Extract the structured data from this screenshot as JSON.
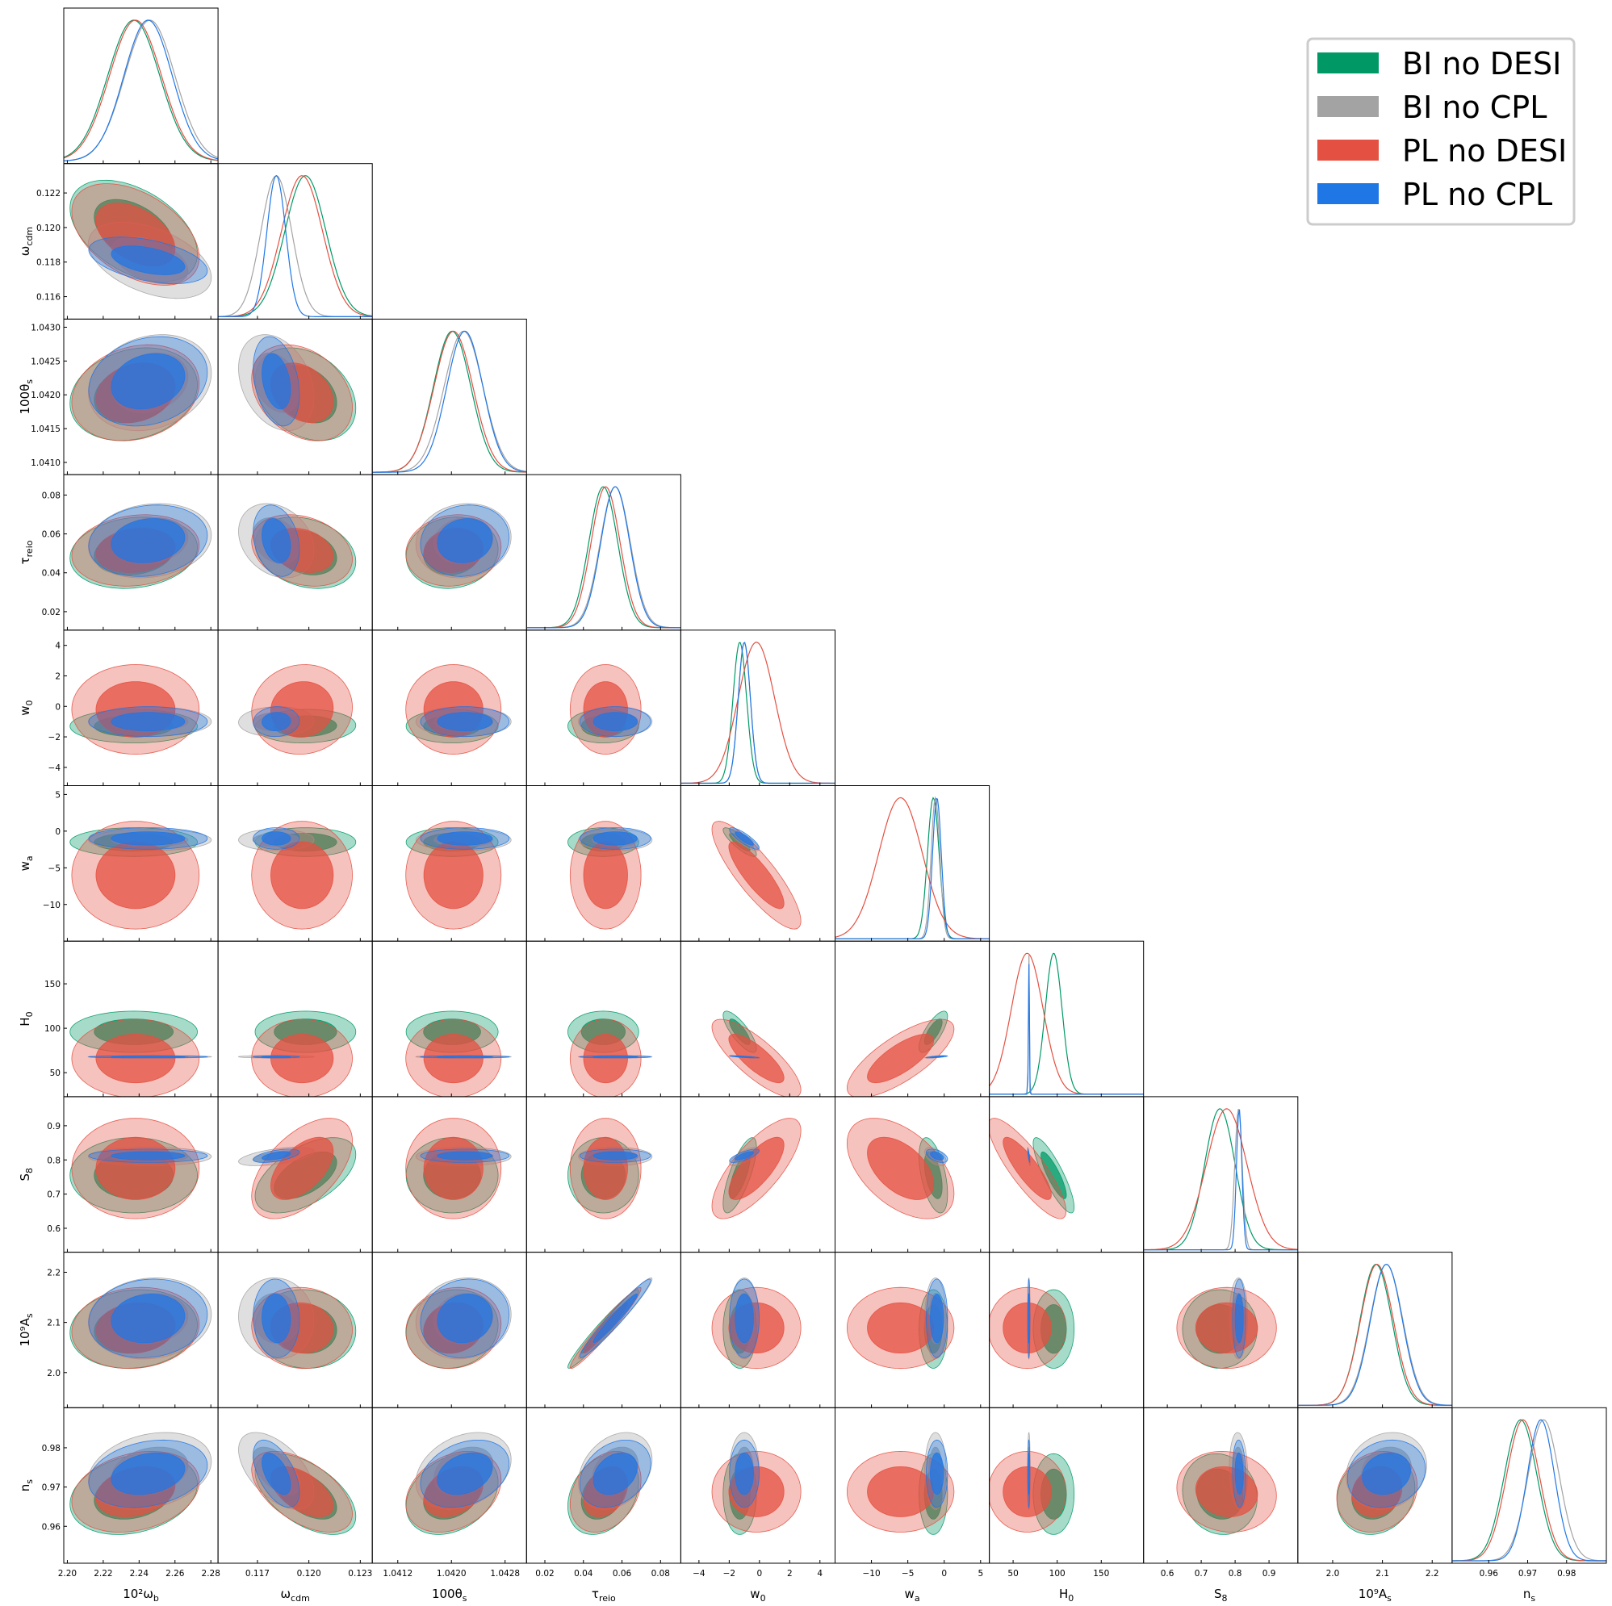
{
  "chart_data": {
    "type": "corner",
    "title": "",
    "parameters": [
      {
        "id": "omega_b",
        "label": "10²ω_b",
        "sub": "b",
        "ticks": [
          "2.20",
          "2.22",
          "2.24",
          "2.26",
          "2.28"
        ],
        "range": [
          2.198,
          2.284
        ]
      },
      {
        "id": "omega_cdm",
        "label": "ω_cdm",
        "sub": "cdm",
        "ticks": [
          "0.117",
          "0.120",
          "0.123"
        ],
        "range": [
          0.1147,
          0.1237
        ]
      },
      {
        "id": "theta_s",
        "label": "100θ_s",
        "sub": "s",
        "ticks": [
          "1.0412",
          "1.0420",
          "1.0428"
        ],
        "range": [
          1.04082,
          1.04312
        ]
      },
      {
        "id": "tau_reio",
        "label": "τ_reio",
        "sub": "reio",
        "ticks": [
          "0.02",
          "0.04",
          "0.06",
          "0.08"
        ],
        "range": [
          0.0105,
          0.0905
        ]
      },
      {
        "id": "w0",
        "label": "w_0",
        "sub": "0",
        "ticks": [
          "−4",
          "−2",
          "0",
          "2",
          "4"
        ],
        "range": [
          -5.2,
          5.0
        ]
      },
      {
        "id": "wa",
        "label": "w_a",
        "sub": "a",
        "ticks": [
          "−10",
          "−5",
          "0",
          "5"
        ],
        "range": [
          -15.0,
          6.2
        ]
      },
      {
        "id": "H0",
        "label": "H_0",
        "sub": "0",
        "ticks": [
          "50",
          "100",
          "150"
        ],
        "range": [
          23,
          198
        ]
      },
      {
        "id": "S8",
        "label": "S_8",
        "sub": "8",
        "ticks": [
          "0.6",
          "0.7",
          "0.8",
          "0.9"
        ],
        "range": [
          0.53,
          0.985
        ]
      },
      {
        "id": "As",
        "label": "10⁹A_s",
        "sub": "s",
        "ticks": [
          "2.0",
          "2.1",
          "2.2"
        ],
        "range": [
          1.93,
          2.24
        ]
      },
      {
        "id": "ns",
        "label": "n_s",
        "sub": "s",
        "ticks": [
          "0.96",
          "0.97",
          "0.98"
        ],
        "range": [
          0.9506,
          0.9902
        ]
      }
    ],
    "y_ticks": [
      null,
      [
        "0.122",
        "0.120",
        "0.118",
        "0.116"
      ],
      [
        "1.0430",
        "1.0425",
        "1.0420",
        "1.0415",
        "1.0410"
      ],
      [
        "0.08",
        "0.06",
        "0.04",
        "0.02"
      ],
      [
        "4",
        "2",
        "0",
        "−2",
        "−4"
      ],
      [
        "5",
        "0",
        "−5",
        "−10"
      ],
      [
        "150",
        "100",
        "50"
      ],
      [
        "0.9",
        "0.8",
        "0.7",
        "0.6"
      ],
      [
        "2.2",
        "2.1",
        "2.0"
      ],
      [
        "0.98",
        "0.97",
        "0.96"
      ]
    ],
    "series": [
      {
        "name": "BI no DESI",
        "color": "#009966",
        "mean": {
          "omega_b": 2.237,
          "omega_cdm": 0.1198,
          "theta_s": 1.04201,
          "tau_reio": 0.0503,
          "w0": -1.3,
          "wa": -1.5,
          "H0": 96,
          "S8": 0.755,
          "As": 2.087,
          "ns": 0.9682
        },
        "sigma": {
          "omega_b": 0.0145,
          "omega_cdm": 0.0012,
          "theta_s": 0.00028,
          "tau_reio": 0.0075,
          "w0": 0.45,
          "wa": 0.8,
          "H0": 9.5,
          "S8": 0.045,
          "As": 0.032,
          "ns": 0.0042
        }
      },
      {
        "name": "BI no CPL",
        "color": "#a3a3a3",
        "mean": {
          "omega_b": 2.246,
          "omega_cdm": 0.1181,
          "theta_s": 1.04218,
          "tau_reio": 0.0565,
          "w0": -1.0,
          "wa": -1.2,
          "H0": 67.9,
          "S8": 0.81,
          "As": 2.108,
          "ns": 0.9741
        },
        "sigma": {
          "omega_b": 0.014,
          "omega_cdm": 0.0009,
          "theta_s": 0.00029,
          "tau_reio": 0.0078,
          "w0": 0.4,
          "wa": 0.6,
          "H0": 0.6,
          "S8": 0.011,
          "As": 0.033,
          "ns": 0.004
        }
      },
      {
        "name": "PL no DESI",
        "color": "#e45042",
        "mean": {
          "omega_b": 2.238,
          "omega_cdm": 0.1196,
          "theta_s": 1.04203,
          "tau_reio": 0.0515,
          "w0": -0.2,
          "wa": -6.0,
          "H0": 66,
          "S8": 0.775,
          "As": 2.089,
          "ns": 0.9688
        },
        "sigma": {
          "omega_b": 0.0145,
          "omega_cdm": 0.0012,
          "theta_s": 0.00029,
          "tau_reio": 0.0075,
          "w0": 1.2,
          "wa": 3.0,
          "H0": 18,
          "S8": 0.06,
          "As": 0.033,
          "ns": 0.0042
        }
      },
      {
        "name": "PL no CPL",
        "color": "#1f77e6",
        "mean": {
          "omega_b": 2.245,
          "omega_cdm": 0.1181,
          "theta_s": 1.0422,
          "tau_reio": 0.0565,
          "w0": -1.0,
          "wa": -1.0,
          "H0": 67.8,
          "S8": 0.812,
          "As": 2.108,
          "ns": 0.9734
        },
        "sigma": {
          "omega_b": 0.0135,
          "omega_cdm": 0.00055,
          "theta_s": 0.00027,
          "tau_reio": 0.0075,
          "w0": 0.4,
          "wa": 0.6,
          "H0": 0.5,
          "S8": 0.008,
          "As": 0.032,
          "ns": 0.0035
        }
      }
    ],
    "legend": {
      "position": "top-right",
      "entries": [
        "BI no DESI",
        "BI no CPL",
        "PL no DESI",
        "PL no CPL"
      ]
    },
    "contour_levels": [
      "68%",
      "95%"
    ],
    "grid": false
  }
}
